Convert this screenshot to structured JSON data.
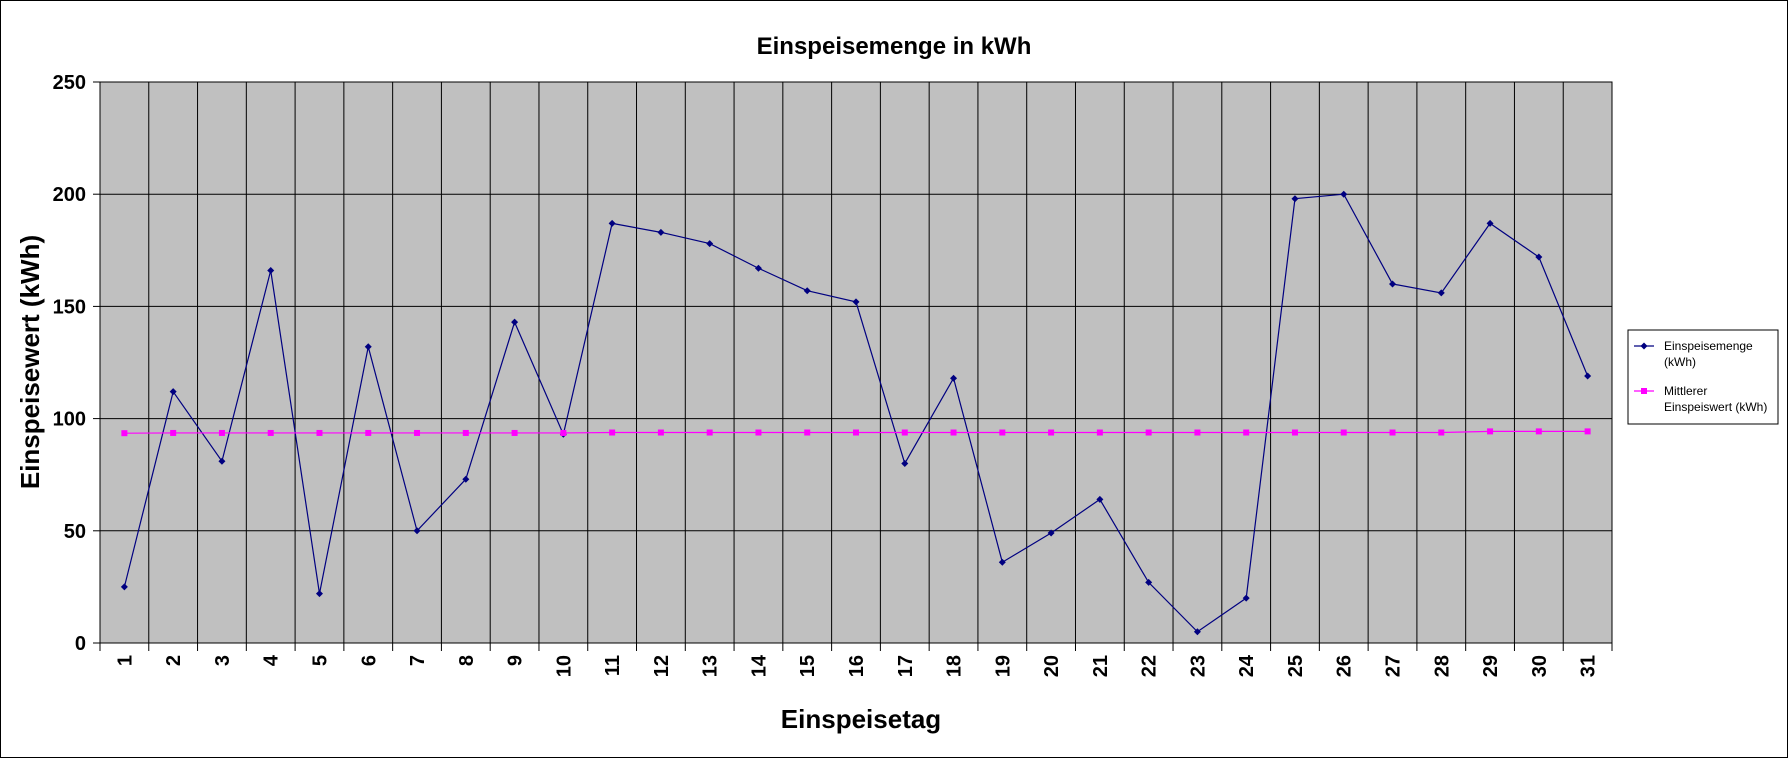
{
  "chart_data": {
    "type": "line",
    "title": "Einspeisemenge in kWh",
    "xlabel": "Einspeisetag",
    "ylabel": "Einspeisewert (kWh)",
    "ylim": [
      0,
      250
    ],
    "yticks": [
      0,
      50,
      100,
      150,
      200,
      250
    ],
    "grid": true,
    "legend_position": "right",
    "categories": [
      "1",
      "2",
      "3",
      "4",
      "5",
      "6",
      "7",
      "8",
      "9",
      "10",
      "11",
      "12",
      "13",
      "14",
      "15",
      "16",
      "17",
      "18",
      "19",
      "20",
      "21",
      "22",
      "23",
      "24",
      "25",
      "26",
      "27",
      "28",
      "29",
      "30",
      "31"
    ],
    "series": [
      {
        "name": "Einspeisemenge (kWh)",
        "legend_lines": [
          "Einspeisemenge",
          "(kWh)"
        ],
        "color": "#000080",
        "marker": "diamond",
        "values": [
          25,
          112,
          81,
          166,
          22,
          132,
          50,
          73,
          143,
          93,
          187,
          183,
          178,
          167,
          157,
          152,
          80,
          118,
          36,
          49,
          64,
          27,
          5,
          20,
          198,
          200,
          160,
          156,
          187,
          172,
          119
        ]
      },
      {
        "name": "Mittlerer Einspeiswert (kWh)",
        "legend_lines": [
          "Mittlerer",
          "Einspeiswert (kWh)"
        ],
        "color": "#ff00ff",
        "marker": "square",
        "values": [
          93.5,
          93.6,
          93.6,
          93.6,
          93.6,
          93.6,
          93.6,
          93.6,
          93.6,
          93.6,
          93.8,
          93.8,
          93.8,
          93.8,
          93.8,
          93.8,
          93.8,
          93.8,
          93.8,
          93.8,
          93.8,
          93.8,
          93.8,
          93.8,
          93.8,
          93.8,
          93.8,
          93.8,
          94.3,
          94.3,
          94.3
        ]
      }
    ]
  },
  "colors": {
    "plot_background": "#c0c0c0",
    "gridline": "#000000"
  }
}
